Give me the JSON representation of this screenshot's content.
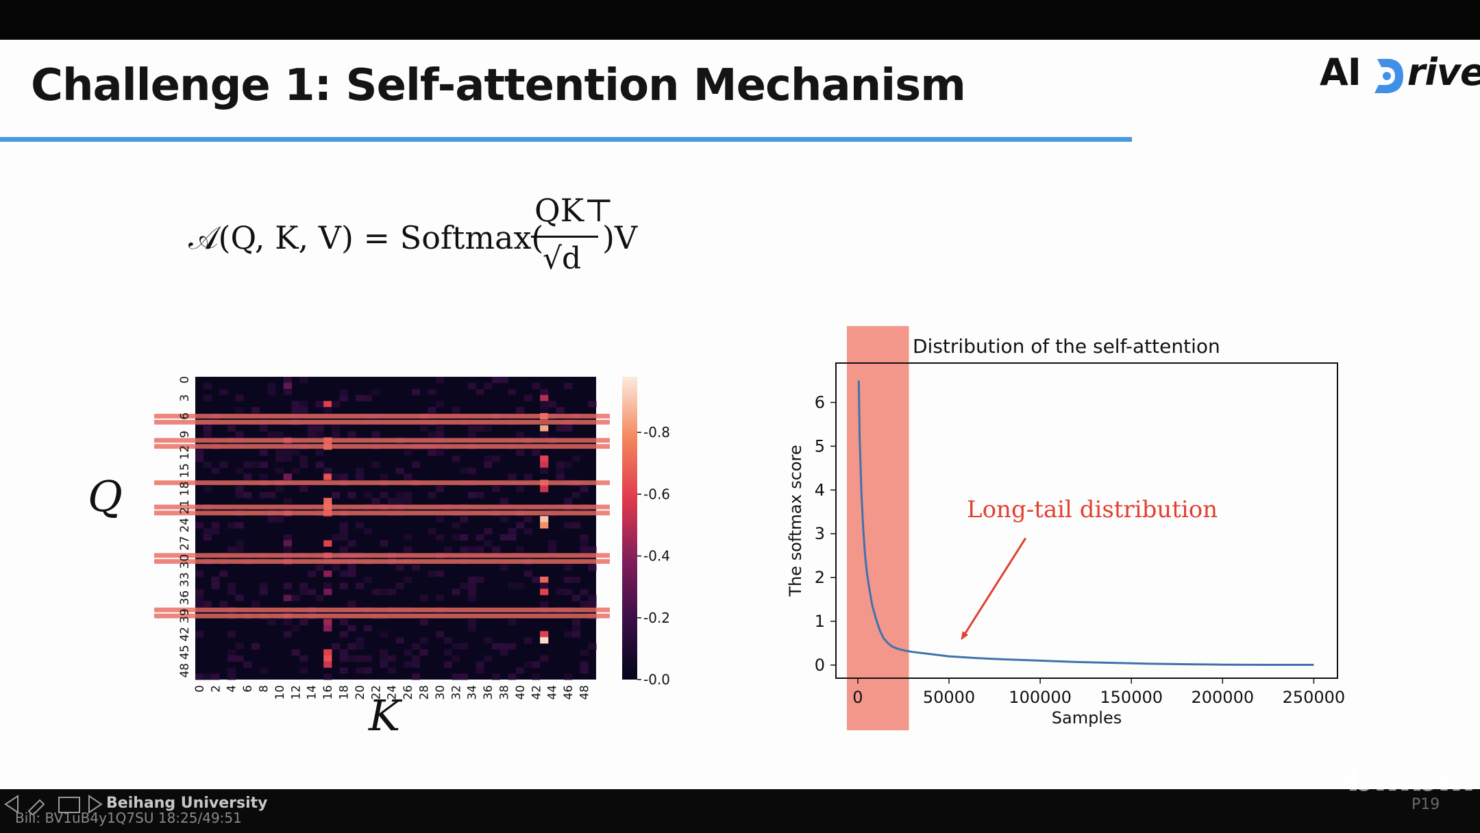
{
  "slide": {
    "title": "Challenge 1: Self-attention Mechanism",
    "logo": {
      "prefix": "AI",
      "suffix": "rive"
    },
    "formula": {
      "lhs": "𝒜(Q, K, V) = Softmax(",
      "numerator": "QK⊤",
      "denominator": "√d",
      "rhs": ")V"
    },
    "q_label": "Q",
    "k_label": "K",
    "highlight_color": "#e96a60"
  },
  "chart_data": [
    {
      "type": "heatmap",
      "title": "",
      "rows": 50,
      "cols": 50,
      "y_ticks": [
        "0",
        "3",
        "6",
        "9",
        "12",
        "15",
        "18",
        "21",
        "24",
        "27",
        "30",
        "33",
        "36",
        "39",
        "42",
        "45",
        "48"
      ],
      "x_ticks": [
        "0",
        "2",
        "4",
        "6",
        "8",
        "10",
        "12",
        "14",
        "16",
        "18",
        "20",
        "22",
        "24",
        "26",
        "28",
        "30",
        "32",
        "34",
        "36",
        "38",
        "40",
        "42",
        "44",
        "46",
        "48"
      ],
      "colorbar": {
        "ticks": [
          "0.0",
          "0.2",
          "0.4",
          "0.6",
          "0.8"
        ],
        "range": [
          0,
          0.98
        ]
      },
      "strong_columns": [
        {
          "col": 16,
          "rows": [
            4,
            10,
            11,
            16,
            20,
            21,
            22,
            27,
            29,
            32,
            35,
            40,
            41,
            45,
            46,
            47
          ],
          "values": [
            0.6,
            0.65,
            0.7,
            0.65,
            0.7,
            0.75,
            0.6,
            0.6,
            0.45,
            0.4,
            0.35,
            0.45,
            0.4,
            0.6,
            0.65,
            0.55
          ]
        },
        {
          "col": 43,
          "rows": [
            3,
            6,
            8,
            13,
            14,
            17,
            18,
            23,
            24,
            33,
            35,
            42,
            43
          ],
          "values": [
            0.5,
            0.75,
            0.85,
            0.6,
            0.55,
            0.65,
            0.55,
            0.9,
            0.8,
            0.7,
            0.6,
            0.6,
            0.95
          ]
        },
        {
          "col": 11,
          "rows": [
            1,
            10,
            16,
            22,
            27,
            30,
            36,
            39
          ],
          "values": [
            0.3,
            0.4,
            0.35,
            0.3,
            0.3,
            0.25,
            0.3,
            0.25
          ]
        }
      ],
      "highlighted_rows": [
        6,
        7,
        10,
        11,
        17,
        21,
        22,
        29,
        30,
        38,
        39
      ]
    },
    {
      "type": "line",
      "title": "Distribution of the self-attention",
      "xlabel": "Samples",
      "ylabel": "The softmax score",
      "xlim": [
        -12000,
        263000
      ],
      "ylim": [
        -0.3,
        6.9
      ],
      "x_ticks": [
        0,
        50000,
        100000,
        150000,
        200000,
        250000
      ],
      "y_ticks": [
        0,
        1,
        2,
        3,
        4,
        5,
        6
      ],
      "series": [
        {
          "name": "softmax score",
          "color": "#3f72ad",
          "x": [
            500,
            1000,
            2000,
            3000,
            4000,
            5000,
            6500,
            8000,
            10000,
            12000,
            14000,
            16500,
            19000,
            22000,
            26000,
            30000,
            40000,
            50000,
            65000,
            80000,
            100000,
            120000,
            140000,
            160000,
            180000,
            200000,
            225000,
            250000
          ],
          "y": [
            6.5,
            5.2,
            3.9,
            3.1,
            2.5,
            2.1,
            1.7,
            1.35,
            1.05,
            0.8,
            0.62,
            0.5,
            0.42,
            0.37,
            0.33,
            0.3,
            0.25,
            0.2,
            0.16,
            0.13,
            0.1,
            0.07,
            0.05,
            0.03,
            0.02,
            0.01,
            0.005,
            0.005
          ]
        }
      ],
      "highlight_band": [
        -6000,
        28000
      ],
      "annotation": {
        "text": "Long-tail distribution",
        "color": "#e2402f",
        "arrow_tip": [
          57000,
          0.6
        ],
        "arrow_tail": [
          92000,
          2.9
        ]
      }
    }
  ],
  "footer": {
    "affiliation": "Beihang University",
    "info": "Bili: BV1uB4y1Q7SU 18:25/49:51",
    "brand": "biendata",
    "site_logo": "bilibili",
    "page": "P19"
  }
}
